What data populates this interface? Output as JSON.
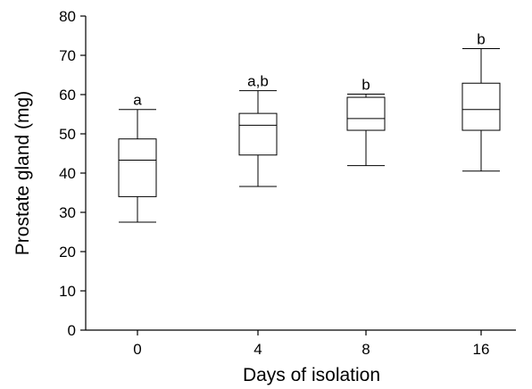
{
  "chart_data": {
    "type": "box",
    "xlabel": "Days of isolation",
    "ylabel": "Prostate gland (mg)",
    "ylim": [
      0,
      80
    ],
    "yticks": [
      0,
      10,
      20,
      30,
      40,
      50,
      60,
      70,
      80
    ],
    "categories": [
      "0",
      "4",
      "8",
      "16"
    ],
    "boxes": [
      {
        "category": "0",
        "whisker_low": 27.5,
        "q1": 34.0,
        "median": 43.3,
        "q3": 48.7,
        "whisker_high": 56.2,
        "label": "a"
      },
      {
        "category": "4",
        "whisker_low": 36.6,
        "q1": 44.6,
        "median": 52.2,
        "q3": 55.2,
        "whisker_high": 61.0,
        "label": "a,b"
      },
      {
        "category": "8",
        "whisker_low": 41.9,
        "q1": 50.9,
        "median": 53.9,
        "q3": 59.3,
        "whisker_high": 60.1,
        "label": "b"
      },
      {
        "category": "16",
        "whisker_low": 40.5,
        "q1": 50.9,
        "median": 56.2,
        "q3": 62.9,
        "whisker_high": 71.7,
        "label": "b"
      }
    ],
    "grid": false,
    "legend": "none"
  }
}
